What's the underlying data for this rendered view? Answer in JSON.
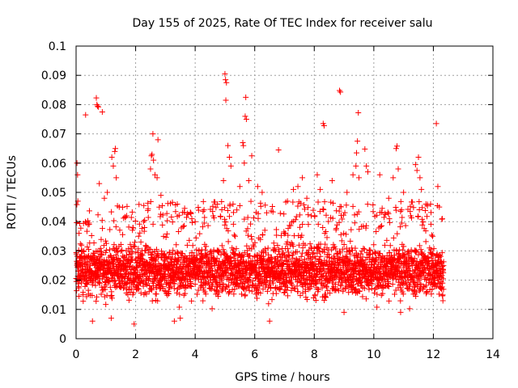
{
  "chart_data": {
    "type": "scatter",
    "title": "Day 155 of 2025, Rate Of TEC Index for receiver salu",
    "xlabel": "GPS time / hours",
    "ylabel": "ROTI / TECUs",
    "xlim": [
      0,
      14
    ],
    "ylim": [
      0,
      0.1
    ],
    "xticks": [
      0,
      2,
      4,
      6,
      8,
      10,
      12,
      14
    ],
    "xtick_labels": [
      "0",
      "2",
      "4",
      "6",
      "8",
      "10",
      "12",
      "14"
    ],
    "yticks": [
      0,
      0.01,
      0.02,
      0.03,
      0.04,
      0.05,
      0.06,
      0.07,
      0.08,
      0.09,
      0.1
    ],
    "ytick_labels": [
      "0",
      "0.01",
      "0.02",
      "0.03",
      "0.04",
      "0.05",
      "0.06",
      "0.07",
      "0.08",
      "0.09",
      "0.1"
    ],
    "grid": true,
    "marker": "+",
    "color": "#ff0000",
    "series": [
      {
        "name": "ROTI",
        "x_range": [
          0,
          12.35
        ],
        "typical_band": [
          0.012,
          0.035
        ],
        "points": [
          [
            0.03,
            0.06
          ],
          [
            0.05,
            0.056
          ],
          [
            0.06,
            0.047
          ],
          [
            0.1,
            0.036
          ],
          [
            0.15,
            0.025
          ],
          [
            0.32,
            0.0765
          ],
          [
            0.4,
            0.039
          ],
          [
            0.55,
            0.006
          ],
          [
            0.68,
            0.0823
          ],
          [
            0.7,
            0.08
          ],
          [
            0.72,
            0.0795
          ],
          [
            0.75,
            0.0792
          ],
          [
            0.78,
            0.053
          ],
          [
            0.88,
            0.0775
          ],
          [
            0.95,
            0.048
          ],
          [
            1.05,
            0.05
          ],
          [
            1.25,
            0.059
          ],
          [
            1.3,
            0.064
          ],
          [
            1.32,
            0.065
          ],
          [
            1.2,
            0.062
          ],
          [
            1.18,
            0.007
          ],
          [
            1.35,
            0.055
          ],
          [
            1.45,
            0.045
          ],
          [
            1.7,
            0.042
          ],
          [
            1.95,
            0.005
          ],
          [
            2.1,
            0.035
          ],
          [
            2.3,
            0.038
          ],
          [
            2.5,
            0.058
          ],
          [
            2.53,
            0.0625
          ],
          [
            2.55,
            0.063
          ],
          [
            2.58,
            0.07
          ],
          [
            2.6,
            0.061
          ],
          [
            2.65,
            0.056
          ],
          [
            2.75,
            0.068
          ],
          [
            2.72,
            0.055
          ],
          [
            2.85,
            0.049
          ],
          [
            3.1,
            0.028
          ],
          [
            3.3,
            0.006
          ],
          [
            3.4,
            0.046
          ],
          [
            3.5,
            0.007
          ],
          [
            3.85,
            0.043
          ],
          [
            4.0,
            0.04
          ],
          [
            4.2,
            0.018
          ],
          [
            4.75,
            0.046
          ],
          [
            4.95,
            0.054
          ],
          [
            5.0,
            0.0905
          ],
          [
            5.02,
            0.0885
          ],
          [
            5.05,
            0.0875
          ],
          [
            5.03,
            0.0815
          ],
          [
            5.1,
            0.066
          ],
          [
            5.15,
            0.062
          ],
          [
            5.2,
            0.059
          ],
          [
            5.4,
            0.044
          ],
          [
            5.5,
            0.052
          ],
          [
            5.6,
            0.067
          ],
          [
            5.62,
            0.066
          ],
          [
            5.65,
            0.06
          ],
          [
            5.7,
            0.0825
          ],
          [
            5.68,
            0.076
          ],
          [
            5.72,
            0.075
          ],
          [
            5.8,
            0.054
          ],
          [
            5.9,
            0.0625
          ],
          [
            6.1,
            0.052
          ],
          [
            6.25,
            0.05
          ],
          [
            6.5,
            0.006
          ],
          [
            6.8,
            0.0645
          ],
          [
            7.1,
            0.047
          ],
          [
            7.3,
            0.051
          ],
          [
            7.45,
            0.052
          ],
          [
            7.6,
            0.055
          ],
          [
            7.75,
            0.048
          ],
          [
            7.9,
            0.042
          ],
          [
            8.1,
            0.056
          ],
          [
            8.2,
            0.051
          ],
          [
            8.3,
            0.0735
          ],
          [
            8.33,
            0.0728
          ],
          [
            8.35,
            0.036
          ],
          [
            8.6,
            0.054
          ],
          [
            8.85,
            0.0848
          ],
          [
            8.88,
            0.0843
          ],
          [
            9.0,
            0.009
          ],
          [
            9.1,
            0.05
          ],
          [
            9.3,
            0.056
          ],
          [
            9.4,
            0.059
          ],
          [
            9.42,
            0.0635
          ],
          [
            9.45,
            0.0675
          ],
          [
            9.48,
            0.0772
          ],
          [
            9.5,
            0.055
          ],
          [
            9.7,
            0.0648
          ],
          [
            9.75,
            0.059
          ],
          [
            9.8,
            0.057
          ],
          [
            10.2,
            0.056
          ],
          [
            10.5,
            0.048
          ],
          [
            10.65,
            0.055
          ],
          [
            10.75,
            0.065
          ],
          [
            10.78,
            0.0658
          ],
          [
            10.82,
            0.058
          ],
          [
            10.9,
            0.009
          ],
          [
            11.0,
            0.05
          ],
          [
            11.4,
            0.0595
          ],
          [
            11.45,
            0.0575
          ],
          [
            11.5,
            0.062
          ],
          [
            11.55,
            0.055
          ],
          [
            11.6,
            0.051
          ],
          [
            11.75,
            0.046
          ],
          [
            12.1,
            0.0735
          ],
          [
            12.15,
            0.052
          ],
          [
            12.2,
            0.045
          ],
          [
            12.3,
            0.041
          ],
          [
            12.32,
            0.013
          ]
        ]
      }
    ]
  }
}
